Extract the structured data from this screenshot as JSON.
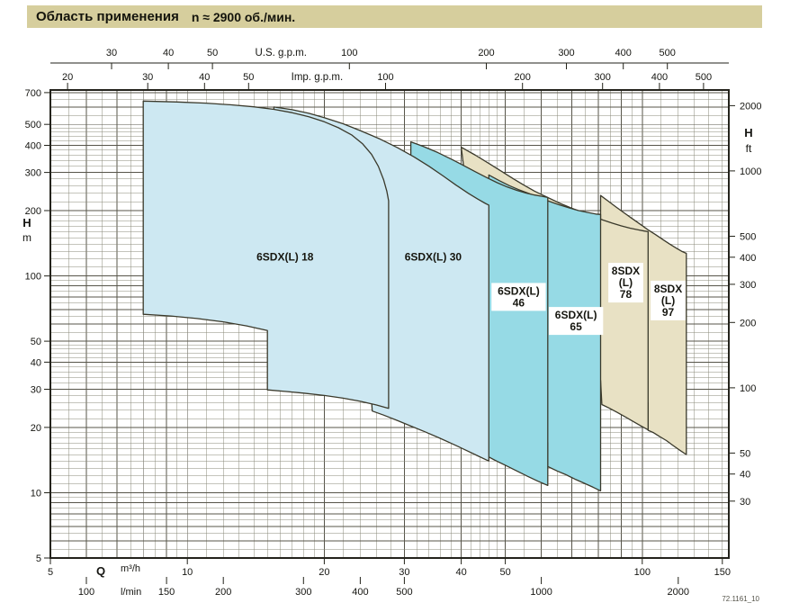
{
  "header": {
    "title": "Область применения",
    "speed": "n ≈ 2900 об./мин."
  },
  "watermark": "72.1161_10",
  "chart_data": {
    "type": "area",
    "title": "Область применения",
    "speed_note": "n ≈ 2900 об./мин.",
    "x_range": [
      5,
      155
    ],
    "y_range": [
      5,
      720
    ],
    "x_axis": {
      "label": "Q",
      "units": [
        "m³/h",
        "l/min"
      ],
      "ticks_m3h": [
        5,
        10,
        20,
        30,
        40,
        50,
        100,
        150
      ],
      "ticks_lmin": [
        100,
        150,
        200,
        300,
        400,
        500,
        1000,
        2000
      ],
      "lmin_per_m3h": 16.6667
    },
    "top_axes": [
      {
        "title": "U.S. g.p.m.",
        "per_m3h": 4.4029,
        "ticks": [
          30,
          40,
          50,
          100,
          200,
          300,
          400,
          500
        ]
      },
      {
        "title": "Imp. g.p.m.",
        "per_m3h": 3.6662,
        "ticks": [
          20,
          30,
          40,
          50,
          100,
          200,
          300,
          400,
          500
        ]
      }
    ],
    "y_axis": {
      "label": "H",
      "units": [
        "m",
        "ft"
      ],
      "ticks_m": [
        700,
        500,
        400,
        300,
        200,
        100,
        50,
        40,
        30,
        20,
        10,
        5
      ],
      "ticks_ft": [
        2000,
        1000,
        500,
        400,
        300,
        200,
        100,
        50,
        40,
        30
      ],
      "ft_per_m": 3.2808
    },
    "colors": {
      "light_blue": "#cde8f2",
      "cyan": "#96dae5",
      "tan": "#e8e1c4",
      "stroke": "#3a392b",
      "grid_minor": "#8a8878",
      "grid_major": "#57554a",
      "frame": "#24231c",
      "header_bg": "#d6ce9d",
      "text": "#151511"
    },
    "regions": [
      {
        "id": "8sdx-97",
        "color": "tan",
        "boxed": true,
        "label_lines": [
          "8SDX",
          "(L)",
          "97"
        ],
        "label_q": 114,
        "label_h": 77,
        "points": [
          [
            81,
            235
          ],
          [
            84,
            222
          ],
          [
            87.5,
            208
          ],
          [
            91,
            196
          ],
          [
            95,
            184
          ],
          [
            99,
            173
          ],
          [
            103,
            163
          ],
          [
            107,
            155
          ],
          [
            111,
            147
          ],
          [
            115,
            140
          ],
          [
            119,
            134
          ],
          [
            122,
            130
          ],
          [
            125,
            127
          ],
          [
            125,
            15
          ],
          [
            121,
            15.7
          ],
          [
            117,
            16.5
          ],
          [
            113,
            17.4
          ],
          [
            109,
            18.2
          ],
          [
            106,
            18.9
          ],
          [
            103,
            19.4
          ],
          [
            103,
            26
          ],
          [
            96,
            31
          ],
          [
            90,
            38
          ],
          [
            86,
            48
          ],
          [
            83,
            62
          ],
          [
            81.5,
            80
          ],
          [
            81,
            110
          ]
        ]
      },
      {
        "id": "8sdx-78",
        "color": "tan",
        "boxed": true,
        "label_lines": [
          "8SDX",
          "(L)",
          "78"
        ],
        "label_q": 92,
        "label_h": 93,
        "points": [
          [
            40,
            392
          ],
          [
            43,
            360
          ],
          [
            46,
            330
          ],
          [
            49,
            304
          ],
          [
            52,
            281
          ],
          [
            55,
            262
          ],
          [
            58,
            246
          ],
          [
            62,
            230
          ],
          [
            66,
            216
          ],
          [
            70,
            205
          ],
          [
            74,
            196
          ],
          [
            78,
            188
          ],
          [
            82,
            181
          ],
          [
            86,
            175
          ],
          [
            90,
            170
          ],
          [
            94,
            166
          ],
          [
            98,
            163
          ],
          [
            101,
            161
          ],
          [
            103,
            160
          ],
          [
            103,
            19.5
          ],
          [
            99.5,
            20.3
          ],
          [
            96,
            21.2
          ],
          [
            92,
            22.3
          ],
          [
            88,
            23.5
          ],
          [
            84.5,
            24.6
          ],
          [
            81.5,
            25.5
          ],
          [
            81,
            33
          ],
          [
            72,
            41
          ],
          [
            63,
            53
          ],
          [
            55,
            70
          ],
          [
            48,
            98
          ],
          [
            43.5,
            160
          ],
          [
            41,
            260
          ]
        ]
      },
      {
        "id": "6sdxl-65",
        "color": "cyan",
        "boxed": true,
        "label_lines": [
          "6SDX(L)",
          "65"
        ],
        "label_q": 71.5,
        "label_h": 62,
        "points": [
          [
            46,
            292
          ],
          [
            48.5,
            275
          ],
          [
            51,
            261
          ],
          [
            53.5,
            250
          ],
          [
            56,
            241
          ],
          [
            59,
            231
          ],
          [
            62,
            222
          ],
          [
            65.5,
            213
          ],
          [
            69,
            206
          ],
          [
            72.5,
            200
          ],
          [
            76,
            196
          ],
          [
            79,
            193
          ],
          [
            81,
            192
          ],
          [
            81,
            10.2
          ],
          [
            78,
            10.6
          ],
          [
            75,
            11
          ],
          [
            71.5,
            11.5
          ],
          [
            68,
            12.1
          ],
          [
            65,
            12.6
          ],
          [
            62,
            13.2
          ],
          [
            62,
            17
          ],
          [
            56,
            19
          ],
          [
            50,
            21.5
          ],
          [
            46,
            23.5
          ]
        ]
      },
      {
        "id": "6sdxl-46",
        "color": "cyan",
        "boxed": true,
        "label_lines": [
          "6SDX(L)",
          "46"
        ],
        "label_q": 53.5,
        "label_h": 80,
        "points": [
          [
            31,
            415
          ],
          [
            33,
            396
          ],
          [
            35.5,
            371
          ],
          [
            38,
            346
          ],
          [
            40.5,
            323
          ],
          [
            43,
            302
          ],
          [
            45.5,
            284
          ],
          [
            48,
            269
          ],
          [
            50.5,
            257
          ],
          [
            53,
            248
          ],
          [
            55.5,
            241
          ],
          [
            58,
            236
          ],
          [
            60,
            233
          ],
          [
            62,
            230
          ],
          [
            62,
            10.8
          ],
          [
            59,
            11.3
          ],
          [
            56,
            11.9
          ],
          [
            53,
            12.6
          ],
          [
            50,
            13.4
          ],
          [
            47.5,
            14.1
          ],
          [
            45.5,
            14.8
          ],
          [
            45,
            20
          ],
          [
            40,
            22
          ],
          [
            35,
            24.5
          ],
          [
            31,
            27
          ]
        ]
      },
      {
        "id": "6sdxl-30",
        "color": "light_blue",
        "boxed": false,
        "label_lines": [
          "6SDX(L) 30"
        ],
        "label_q": 34.7,
        "label_h": 122,
        "points": [
          [
            15.5,
            601
          ],
          [
            17,
            584
          ],
          [
            18.5,
            562
          ],
          [
            20,
            537
          ],
          [
            22,
            503
          ],
          [
            24,
            468
          ],
          [
            26.5,
            428
          ],
          [
            29,
            390
          ],
          [
            31.5,
            354
          ],
          [
            34,
            320
          ],
          [
            36.5,
            289
          ],
          [
            39,
            262
          ],
          [
            41.5,
            240
          ],
          [
            43.5,
            226
          ],
          [
            45.2,
            216
          ],
          [
            46,
            212
          ],
          [
            46,
            14
          ],
          [
            43.5,
            14.8
          ],
          [
            41,
            15.7
          ],
          [
            38.5,
            16.7
          ],
          [
            36,
            17.8
          ],
          [
            33.5,
            19
          ],
          [
            31,
            20.3
          ],
          [
            29,
            21.5
          ],
          [
            27,
            22.8
          ],
          [
            25.5,
            23.8
          ],
          [
            25,
            45
          ],
          [
            21,
            49
          ],
          [
            18,
            52
          ],
          [
            16,
            54
          ],
          [
            15.5,
            55
          ]
        ]
      },
      {
        "id": "6sdxl-18",
        "color": "light_blue",
        "boxed": false,
        "label_lines": [
          "6SDX(L) 18"
        ],
        "label_q": 16.4,
        "label_h": 122,
        "points": [
          [
            8,
            640
          ],
          [
            9.5,
            634
          ],
          [
            11,
            626
          ],
          [
            12.5,
            615
          ],
          [
            14,
            602
          ],
          [
            15.5,
            586
          ],
          [
            17,
            566
          ],
          [
            18.5,
            542
          ],
          [
            20,
            514
          ],
          [
            21.5,
            482
          ],
          [
            23,
            446
          ],
          [
            24.3,
            406
          ],
          [
            25.4,
            364
          ],
          [
            26.3,
            320
          ],
          [
            27,
            278
          ],
          [
            27.45,
            246
          ],
          [
            27.7,
            222
          ],
          [
            27.7,
            24.5
          ],
          [
            26,
            25.4
          ],
          [
            24,
            26.4
          ],
          [
            22,
            27.3
          ],
          [
            20,
            28.1
          ],
          [
            18,
            28.8
          ],
          [
            16.5,
            29.3
          ],
          [
            15,
            29.8
          ],
          [
            15,
            56
          ],
          [
            13.5,
            58.8
          ],
          [
            12,
            61.4
          ],
          [
            10.5,
            63.6
          ],
          [
            9.2,
            65.3
          ],
          [
            8,
            66.5
          ]
        ]
      }
    ]
  }
}
